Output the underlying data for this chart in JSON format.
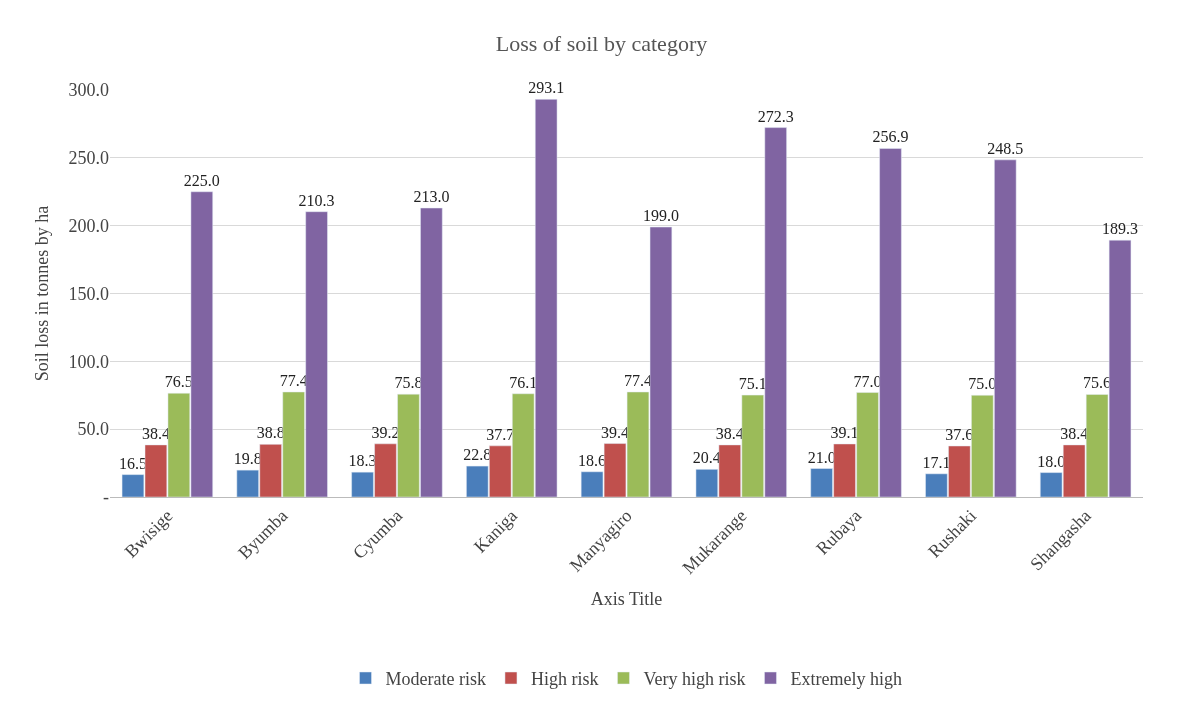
{
  "chart_data": {
    "type": "bar",
    "title": "Loss of soil by category",
    "xlabel": "Axis Title",
    "ylabel": "Soil loss in tonnes by ha",
    "categories": [
      "Bwisige",
      "Byumba",
      "Cyumba",
      "Kaniga",
      "Manyagiro",
      "Mukarange",
      "Rubaya",
      "Rushaki",
      "Shangasha"
    ],
    "series": [
      {
        "name": "Moderate risk",
        "color": "#4a7ebb",
        "values": [
          16.5,
          19.8,
          18.3,
          22.8,
          18.6,
          20.4,
          21.0,
          17.1,
          18.0
        ],
        "value_labels": [
          "16.5",
          "19.8",
          "18.3",
          "22.8",
          "18.6",
          "20.4",
          "21.0",
          "17.1",
          "18.0"
        ]
      },
      {
        "name": "High risk",
        "color": "#c0504d",
        "values": [
          38.4,
          38.8,
          39.2,
          37.7,
          39.4,
          38.4,
          39.1,
          37.6,
          38.4
        ],
        "value_labels": [
          "38.4",
          "38.8",
          "39.2",
          "37.7",
          "39.4",
          "38.4",
          "39.1",
          "37.6",
          "38.4"
        ]
      },
      {
        "name": "Very high risk",
        "color": "#9bbb59",
        "values": [
          76.5,
          77.4,
          75.8,
          76.1,
          77.4,
          75.1,
          77.0,
          75.0,
          75.6
        ],
        "value_labels": [
          "76.5",
          "77.4",
          "75.8",
          "76.1",
          "77.4",
          "75.1",
          "77.0",
          "75.0",
          "75.6"
        ]
      },
      {
        "name": "Extremely high",
        "color": "#8064a2",
        "values": [
          225.0,
          210.3,
          213.0,
          293.1,
          199.0,
          272.3,
          256.9,
          248.5,
          189.3
        ],
        "value_labels": [
          "225.0",
          "210.3",
          "213.0",
          "293.1",
          "199.0",
          "272.3",
          "256.9",
          "248.5",
          "189.3"
        ]
      }
    ],
    "ylim": [
      0,
      300
    ],
    "yticks": [
      {
        "value": 0,
        "label": "-"
      },
      {
        "value": 50,
        "label": "50.0"
      },
      {
        "value": 100,
        "label": "100.0"
      },
      {
        "value": 150,
        "label": "150.0"
      },
      {
        "value": 200,
        "label": "200.0"
      },
      {
        "value": 250,
        "label": "250.0"
      },
      {
        "value": 300,
        "label": "300.0"
      }
    ],
    "grid": "y",
    "legend": "bottom"
  }
}
